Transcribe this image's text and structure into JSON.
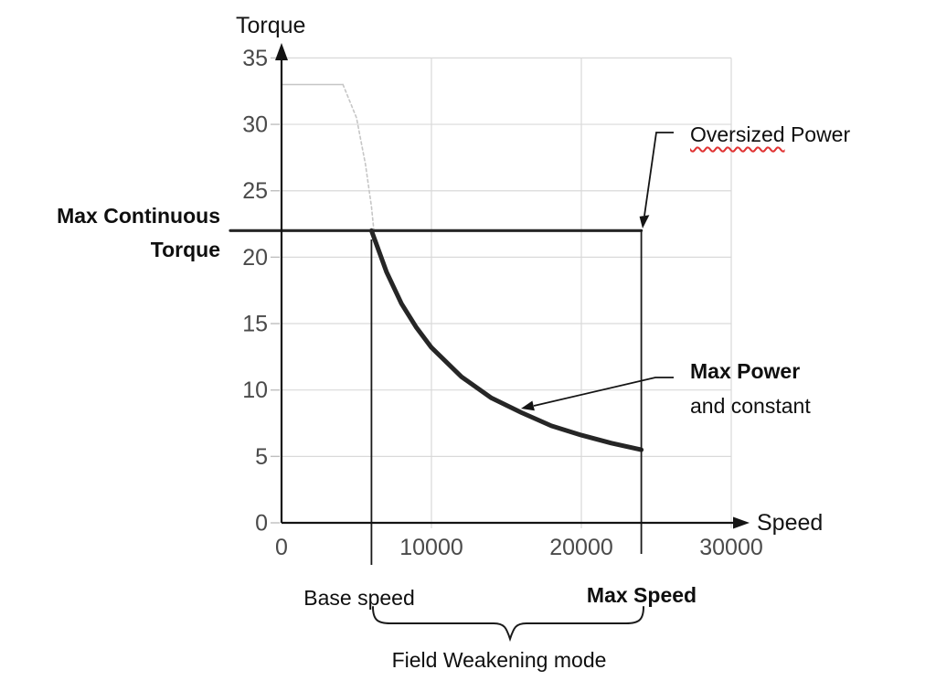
{
  "colors": {
    "curve": "#262626",
    "axis": "#141414",
    "grid": "#d9d9d9",
    "grid_tick": "#bfbfbf",
    "peak_line": "#c6c6c6",
    "tick_text": "#4a4a4a",
    "annotation_text": "#0f0f0f",
    "squiggle": "#e03232"
  },
  "labels": {
    "y_axis_title": "Torque",
    "x_axis_title": "Speed",
    "max_continuous_line1": "Max Continuous",
    "max_continuous_line2": "Torque",
    "oversized_word": "Oversized",
    "oversized_rest": "Power",
    "max_power_line1": "Max Power",
    "max_power_line2": "and constant",
    "base_speed": "Base speed",
    "max_speed": "Max Speed",
    "field_weakening": "Field Weakening mode"
  },
  "chart_data": {
    "type": "line",
    "title": "",
    "xlabel": "Speed",
    "ylabel": "Torque",
    "xlim": [
      0,
      30000
    ],
    "ylim": [
      0,
      35
    ],
    "x_ticks": [
      0,
      10000,
      20000,
      30000
    ],
    "y_ticks": [
      0,
      5,
      10,
      15,
      20,
      25,
      30,
      35
    ],
    "grid": true,
    "key_values": {
      "max_continuous_torque": 22,
      "peak_torque": 33,
      "base_speed": 6000,
      "max_speed": 24000,
      "torque_at_max_speed": 5.5
    },
    "series": [
      {
        "name": "peak-torque-flat",
        "style": "light-solid",
        "points": [
          [
            0,
            33
          ],
          [
            4100,
            33
          ]
        ]
      },
      {
        "name": "peak-torque-droop",
        "style": "light-dashed",
        "points": [
          [
            4100,
            33
          ],
          [
            5000,
            30.5
          ],
          [
            5600,
            27
          ],
          [
            6000,
            23.8
          ],
          [
            6150,
            22.1
          ]
        ]
      },
      {
        "name": "max-continuous-torque-line",
        "style": "solid-medium",
        "points": [
          [
            0,
            22
          ],
          [
            24000,
            22
          ]
        ]
      },
      {
        "name": "max-power-curve",
        "style": "solid-thick",
        "points": [
          [
            6000,
            22
          ],
          [
            7000,
            18.9
          ],
          [
            8000,
            16.5
          ],
          [
            9000,
            14.7
          ],
          [
            10000,
            13.2
          ],
          [
            12000,
            11.0
          ],
          [
            14000,
            9.4
          ],
          [
            16000,
            8.3
          ],
          [
            18000,
            7.3
          ],
          [
            20000,
            6.6
          ],
          [
            22000,
            6.0
          ],
          [
            24000,
            5.5
          ]
        ]
      }
    ],
    "markers": [
      {
        "name": "base-speed-line",
        "x": 6000
      },
      {
        "name": "max-speed-line",
        "x": 24000
      }
    ]
  }
}
